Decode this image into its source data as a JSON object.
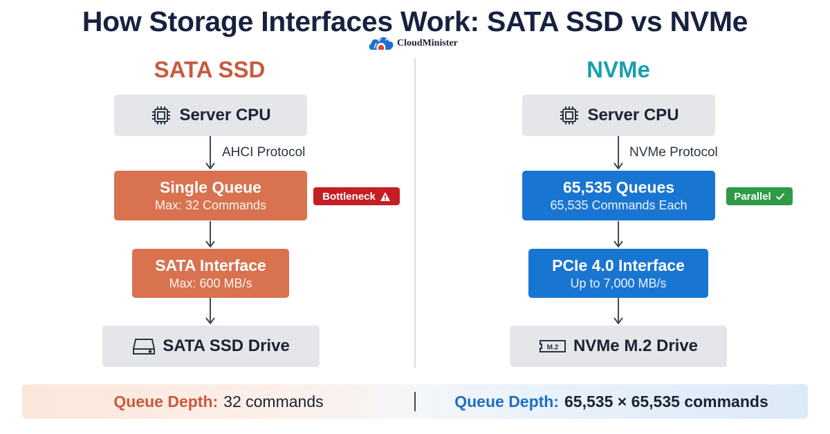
{
  "title": "How Storage Interfaces Work: SATA SSD vs NVMe",
  "brand": {
    "name": "CloudMinister",
    "logo_icon": "cloud-logo-icon"
  },
  "sata": {
    "heading": "SATA SSD",
    "cpu_label": "Server CPU",
    "protocol": "AHCI Protocol",
    "queue_title": "Single Queue",
    "queue_sub": "Max: 32 Commands",
    "badge": "Bottleneck",
    "badge_icon": "warning-icon",
    "interface_title": "SATA Interface",
    "interface_sub": "Max: 600 MB/s",
    "drive_label": "SATA SSD Drive",
    "drive_icon": "hard-drive-icon"
  },
  "nvme": {
    "heading": "NVMe",
    "cpu_label": "Server CPU",
    "protocol": "NVMe Protocol",
    "queue_title": "65,535 Queues",
    "queue_sub": "65,535 Commands Each",
    "badge": "Parallel",
    "badge_icon": "checkmark-icon",
    "interface_title": "PCIe 4.0 Interface",
    "interface_sub": "Up to 7,000 MB/s",
    "drive_label": "NVMe M.2 Drive",
    "drive_icon_text": "M.2",
    "drive_icon": "m2-drive-icon"
  },
  "footer": {
    "sata_label": "Queue Depth:",
    "sata_value": "32 commands",
    "nvme_label": "Queue Depth:",
    "nvme_value": "65,535 × 65,535 commands"
  },
  "colors": {
    "sata_accent": "#c85a3c",
    "nvme_accent": "#1a9fae",
    "sata_box": "#d8724f",
    "nvme_box": "#1975d2",
    "gray_box": "#e4e6ea",
    "bottleneck_red": "#c51f23",
    "parallel_green": "#2f9a47"
  }
}
